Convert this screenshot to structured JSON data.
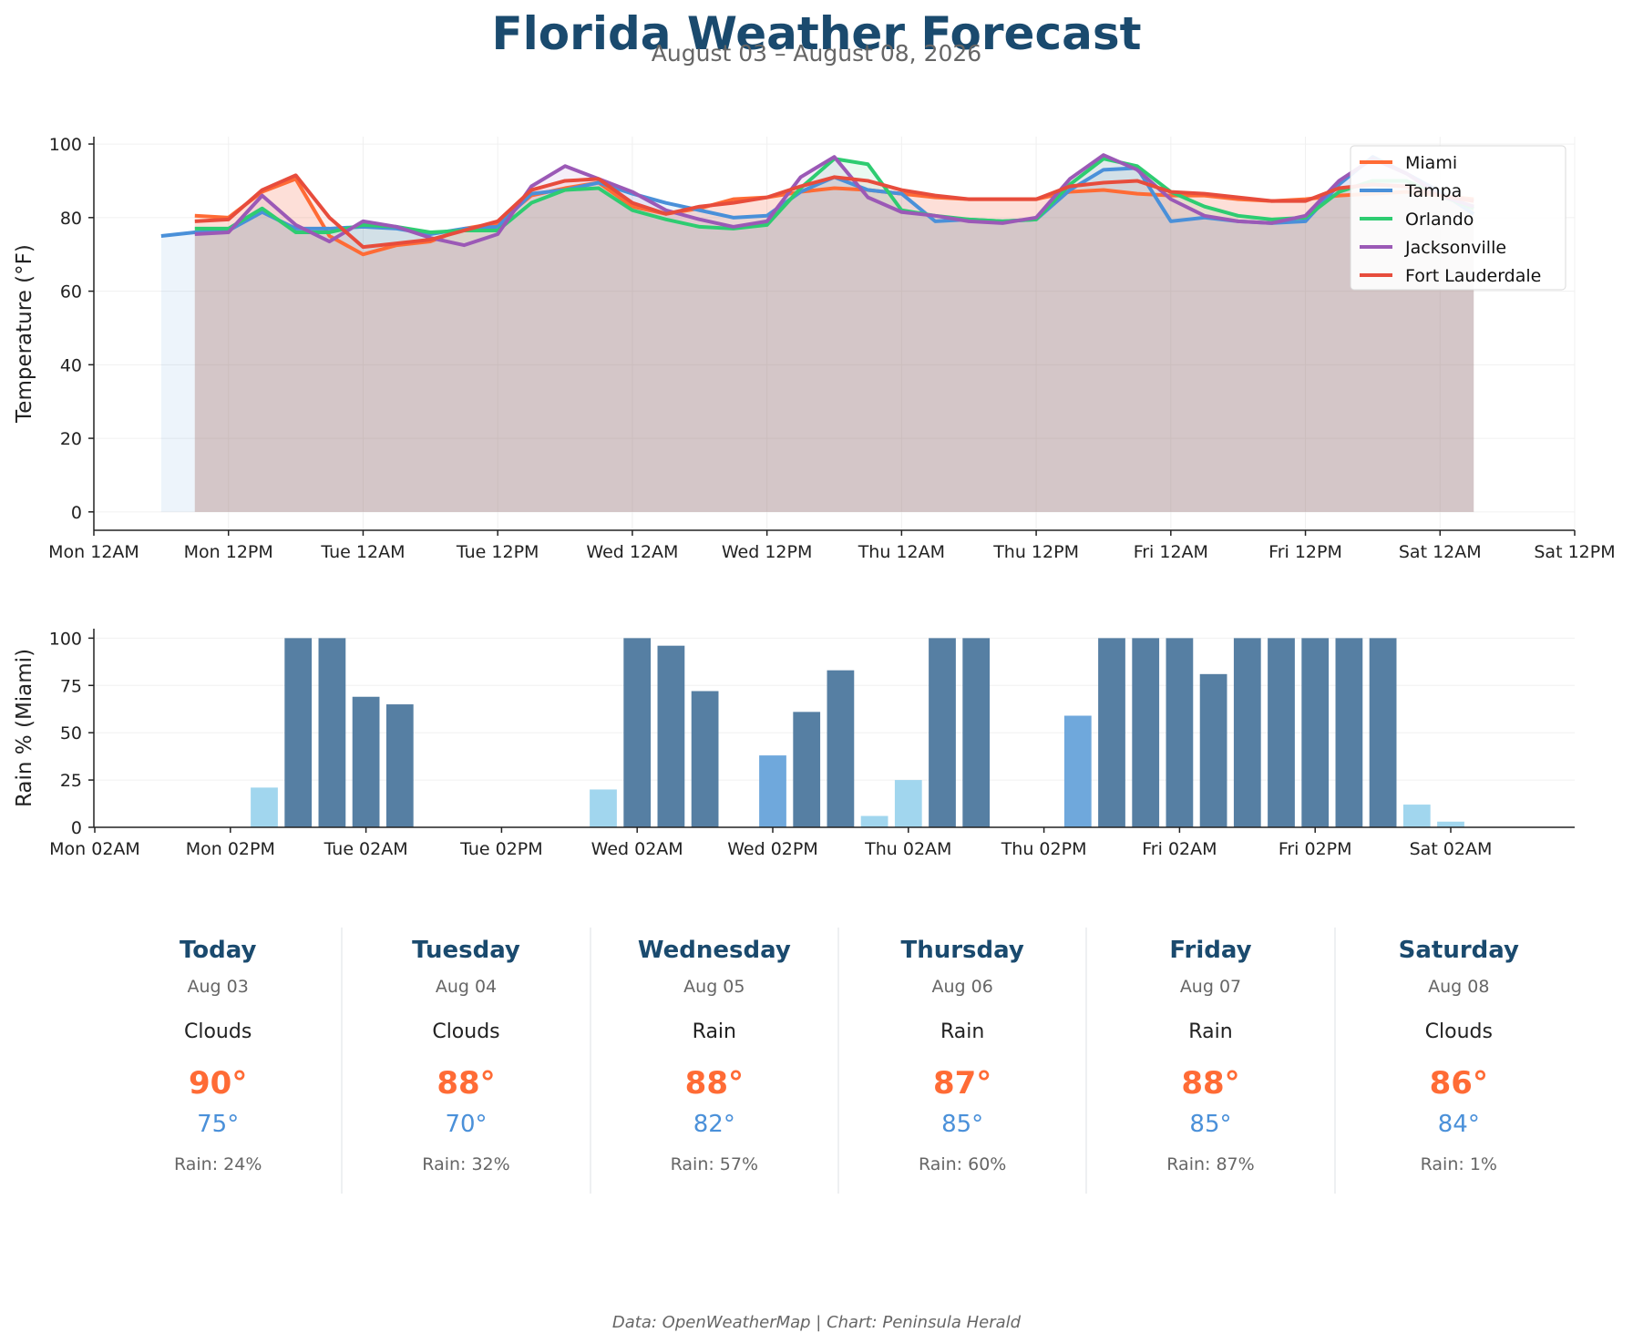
{
  "header": {
    "title": "Florida Weather Forecast",
    "subtitle": "August 03 – August 08, 2026"
  },
  "chart_data": [
    {
      "type": "line",
      "ylabel": "Temperature (°F)",
      "ylim": [
        -5,
        102
      ],
      "yticks": [
        0,
        20,
        40,
        60,
        80,
        100
      ],
      "xlim": [
        0,
        132
      ],
      "x_unit": "hours from Mon 12AM",
      "xticks": [
        {
          "label": "Mon 12AM",
          "hour": 0
        },
        {
          "label": "Mon 12PM",
          "hour": 12
        },
        {
          "label": "Tue 12AM",
          "hour": 24
        },
        {
          "label": "Tue 12PM",
          "hour": 36
        },
        {
          "label": "Wed 12AM",
          "hour": 48
        },
        {
          "label": "Wed 12PM",
          "hour": 60
        },
        {
          "label": "Thu 12AM",
          "hour": 72
        },
        {
          "label": "Thu 12PM",
          "hour": 84
        },
        {
          "label": "Fri 12AM",
          "hour": 96
        },
        {
          "label": "Fri 12PM",
          "hour": 108
        },
        {
          "label": "Sat 12AM",
          "hour": 120
        },
        {
          "label": "Sat 12PM",
          "hour": 132
        }
      ],
      "grid": true,
      "legend": "top-right",
      "fill_under": true,
      "series": [
        {
          "name": "Miami",
          "color": "#ff6b35",
          "x": [
            9,
            12,
            15,
            18,
            21,
            24,
            27,
            30,
            33,
            36,
            39,
            42,
            45,
            48,
            51,
            54,
            57,
            60,
            63,
            66,
            69,
            72,
            75,
            78,
            81,
            84,
            87,
            90,
            93,
            96,
            99,
            102,
            105,
            108,
            111,
            114,
            117,
            120,
            123
          ],
          "values": [
            80.5,
            80,
            87,
            90.5,
            75,
            70,
            72.5,
            73.5,
            77,
            78.5,
            86,
            88,
            89.5,
            83,
            81,
            82.5,
            85,
            85.5,
            87,
            88,
            87.5,
            86.5,
            85.5,
            85,
            85,
            85,
            87,
            87.5,
            86.5,
            86,
            86,
            85,
            84.5,
            85,
            86,
            86.5,
            87,
            86,
            85
          ]
        },
        {
          "name": "Tampa",
          "color": "#4a90d9",
          "x": [
            6,
            9,
            12,
            15,
            18,
            21,
            24,
            27,
            30,
            33,
            36,
            39,
            42,
            45,
            48,
            51,
            54,
            57,
            60,
            63,
            66,
            69,
            72,
            75,
            78,
            81,
            84,
            87,
            90,
            93,
            96,
            99,
            102,
            105,
            108,
            111,
            114,
            117,
            120,
            123
          ],
          "values": [
            75,
            76,
            76.5,
            81.5,
            77,
            77,
            77.5,
            77,
            75.5,
            77,
            77.5,
            86.5,
            87.5,
            89.5,
            86.5,
            84,
            82,
            80,
            80.5,
            87,
            91,
            87.5,
            86.5,
            79,
            79.5,
            79,
            79.5,
            87.5,
            93,
            93.5,
            79,
            80,
            79,
            78.5,
            79,
            89,
            96.5,
            92,
            87,
            81
          ]
        },
        {
          "name": "Orlando",
          "color": "#2ecc71",
          "x": [
            9,
            12,
            15,
            18,
            21,
            24,
            27,
            30,
            33,
            36,
            39,
            42,
            45,
            48,
            51,
            54,
            57,
            60,
            63,
            66,
            69,
            72,
            75,
            78,
            81,
            84,
            87,
            90,
            93,
            96,
            99,
            102,
            105,
            108,
            111,
            114,
            117,
            120,
            123
          ],
          "values": [
            77,
            77,
            82.5,
            76,
            76,
            78,
            77.5,
            76,
            76.5,
            76.5,
            84,
            87.5,
            88,
            82,
            79.5,
            77.5,
            77,
            78,
            88,
            96,
            94.5,
            82,
            80.5,
            79.5,
            79,
            79.5,
            89,
            96,
            94,
            87,
            83,
            80.5,
            79.5,
            80,
            87,
            90,
            90,
            86,
            82.5
          ]
        },
        {
          "name": "Jacksonville",
          "color": "#9b59b6",
          "x": [
            9,
            12,
            15,
            18,
            21,
            24,
            27,
            30,
            33,
            36,
            39,
            42,
            45,
            48,
            51,
            54,
            57,
            60,
            63,
            66,
            69,
            72,
            75,
            78,
            81,
            84,
            87,
            90,
            93,
            96,
            99,
            102,
            105,
            108,
            111,
            114,
            117,
            120,
            123
          ],
          "values": [
            75.5,
            76,
            86,
            78,
            73.5,
            79,
            77.5,
            74.5,
            72.5,
            75.5,
            88.5,
            94,
            90.5,
            87,
            82,
            79.5,
            77.5,
            79,
            91,
            96.5,
            85.5,
            81.5,
            80.5,
            79,
            78.5,
            80,
            90.5,
            97,
            93,
            85,
            80.5,
            79,
            78.5,
            80.5,
            90,
            96,
            92,
            86,
            83
          ]
        },
        {
          "name": "Fort Lauderdale",
          "color": "#e74c3c",
          "x": [
            9,
            12,
            15,
            18,
            21,
            24,
            27,
            30,
            33,
            36,
            39,
            42,
            45,
            48,
            51,
            54,
            57,
            60,
            63,
            66,
            69,
            72,
            75,
            78,
            81,
            84,
            87,
            90,
            93,
            96,
            99,
            102,
            105,
            108,
            111,
            114,
            117,
            120,
            123
          ],
          "values": [
            79,
            79.5,
            87.5,
            91.5,
            80,
            72,
            73,
            74,
            76.5,
            79,
            87.5,
            90,
            90.5,
            84,
            81,
            83,
            84,
            85.5,
            88.5,
            91,
            90,
            87.5,
            86,
            85,
            85,
            85,
            88.5,
            89.5,
            90,
            87,
            86.5,
            85.5,
            84.5,
            84.5,
            88,
            89,
            88.5,
            86,
            84.5
          ]
        }
      ]
    },
    {
      "type": "bar",
      "ylabel": "Rain % (Miami)",
      "ylim": [
        0,
        105
      ],
      "yticks": [
        0,
        25,
        50,
        75,
        100
      ],
      "grid": true,
      "xticks": [
        "Mon 02AM",
        "Mon 02PM",
        "Tue 02AM",
        "Tue 02PM",
        "Wed 02AM",
        "Wed 02PM",
        "Thu 02AM",
        "Thu 02PM",
        "Fri 02AM",
        "Fri 02PM",
        "Sat 02AM"
      ],
      "categories": [
        "Mon 02AM",
        "Mon 05AM",
        "Mon 08AM",
        "Mon 11AM",
        "Mon 02PM",
        "Mon 05PM",
        "Mon 08PM",
        "Mon 11PM",
        "Tue 02AM",
        "Tue 05AM",
        "Tue 08AM",
        "Tue 11AM",
        "Tue 02PM",
        "Tue 05PM",
        "Tue 08PM",
        "Tue 11PM",
        "Wed 02AM",
        "Wed 05AM",
        "Wed 08AM",
        "Wed 11AM",
        "Wed 02PM",
        "Wed 05PM",
        "Wed 08PM",
        "Wed 11PM",
        "Thu 02AM",
        "Thu 05AM",
        "Thu 08AM",
        "Thu 11AM",
        "Thu 02PM",
        "Thu 05PM",
        "Thu 08PM",
        "Thu 11PM",
        "Fri 02AM",
        "Fri 05AM",
        "Fri 08AM",
        "Fri 11AM",
        "Fri 02PM",
        "Fri 05PM",
        "Fri 08PM",
        "Fri 11PM",
        "Sat 02AM",
        "Sat 05AM",
        "Sat 08AM",
        "Sat 11AM"
      ],
      "values": [
        0,
        0,
        0,
        0,
        0,
        21,
        100,
        100,
        69,
        65,
        0,
        0,
        0,
        0,
        0,
        20,
        100,
        96,
        72,
        0,
        38,
        61,
        83,
        6,
        25,
        100,
        100,
        0,
        0,
        59,
        100,
        100,
        100,
        81,
        100,
        100,
        100,
        100,
        100,
        12,
        3,
        0,
        0,
        0
      ],
      "colors": {
        "light": "#a1d6ee",
        "medium": "#6fa8dc",
        "heavy": "#567fa3"
      }
    }
  ],
  "forecast": [
    {
      "day": "Today",
      "date": "Aug 03",
      "condition": "Clouds",
      "high": "90°",
      "low": "75°",
      "rain": "Rain: 24%"
    },
    {
      "day": "Tuesday",
      "date": "Aug 04",
      "condition": "Clouds",
      "high": "88°",
      "low": "70°",
      "rain": "Rain: 32%"
    },
    {
      "day": "Wednesday",
      "date": "Aug 05",
      "condition": "Rain",
      "high": "88°",
      "low": "82°",
      "rain": "Rain: 57%"
    },
    {
      "day": "Thursday",
      "date": "Aug 06",
      "condition": "Rain",
      "high": "87°",
      "low": "85°",
      "rain": "Rain: 60%"
    },
    {
      "day": "Friday",
      "date": "Aug 07",
      "condition": "Rain",
      "high": "88°",
      "low": "85°",
      "rain": "Rain: 87%"
    },
    {
      "day": "Saturday",
      "date": "Aug 08",
      "condition": "Clouds",
      "high": "86°",
      "low": "84°",
      "rain": "Rain: 1%"
    }
  ],
  "footer": {
    "credit": "Data: OpenWeatherMap | Chart: Peninsula Herald"
  }
}
